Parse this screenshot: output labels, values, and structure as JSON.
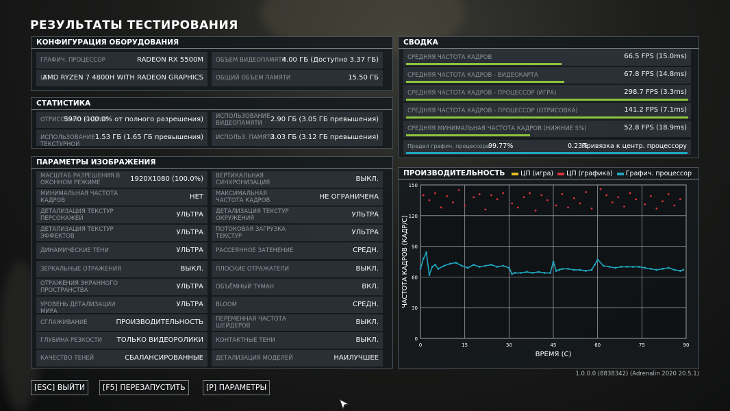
{
  "page_title": "РЕЗУЛЬТАТЫ ТЕСТИРОВАНИЯ",
  "hardware": {
    "title": "КОНФИГУРАЦИЯ ОБОРУДОВАНИЯ",
    "rows": [
      [
        {
          "label": "ГРАФИЧ. ПРОЦЕССОР",
          "value": "RADEON RX 5500M"
        },
        {
          "label": "ОБЪЕМ ВИДЕОПАМЯТИ",
          "value": "4.00 ГБ (Доступно 3.37 ГБ)"
        }
      ],
      [
        {
          "label": "ЦП",
          "value": "AMD RYZEN 7 4800H WITH RADEON GRAPHICS"
        },
        {
          "label": "ОБЩИЙ ОБЪЕМ ПАМЯТИ",
          "value": "15.50 ГБ"
        }
      ]
    ]
  },
  "stats": {
    "title": "СТАТИСТИКА",
    "rows": [
      [
        {
          "label": "ОТРИСОВАНО КАДРОВ",
          "value": "5970 (100.0% от полного разрешения)"
        },
        {
          "label": "ИСПОЛЬЗОВАНИЕ ВИДЕОПАМЯТИ",
          "value": "2.90 ГБ (3.05 ГБ превышения)"
        }
      ],
      [
        {
          "label": "ИСПОЛЬЗОВАНИЕ ТЕКСТУРНОЙ",
          "value": "1.53 ГБ (1.65 ГБ превышения)"
        },
        {
          "label": "ИСПОЛЬЗ. ПАМЯТИ",
          "value": "3.03 ГБ (3.12 ГБ превышения)"
        }
      ]
    ]
  },
  "image_settings": {
    "title": "ПАРАМЕТРЫ ИЗОБРАЖЕНИЯ",
    "rows": [
      [
        {
          "label": "МАСШТАБ РАЗРЕШЕНИЯ В ОКОННОМ РЕЖИМЕ",
          "value": "1920X1080 (100.0%)"
        },
        {
          "label": "ВЕРТИКАЛЬНАЯ СИНХРОНИЗАЦИЯ",
          "value": "ВЫКЛ."
        }
      ],
      [
        {
          "label": "МИНИМАЛЬНАЯ ЧАСТОТА КАДРОВ",
          "value": "НЕТ"
        },
        {
          "label": "МАКСИМАЛЬНАЯ ЧАСТОТА КАДРОВ",
          "value": "НЕ ОГРАНИЧЕНА"
        }
      ],
      [
        {
          "label": "ДЕТАЛИЗАЦИЯ ТЕКСТУР ПЕРСОНАЖЕЙ",
          "value": "УЛЬТРА"
        },
        {
          "label": "ДЕТАЛИЗАЦИЯ ТЕКСТУР ОКРУЖЕНИЯ",
          "value": "УЛЬТРА"
        }
      ],
      [
        {
          "label": "ДЕТАЛИЗАЦИЯ ТЕКСТУР ЭФФЕКТОВ",
          "value": "УЛЬТРА"
        },
        {
          "label": "ПОТОКОВАЯ ЗАГРУЗКА ТЕКСТУР",
          "value": "УЛЬТРА"
        }
      ],
      [
        {
          "label": "ДИНАМИЧЕСКИЕ ТЕНИ",
          "value": "УЛЬТРА"
        },
        {
          "label": "РАССЕЯННОЕ ЗАТЕНЕНИЕ",
          "value": "СРЕДН."
        }
      ],
      [
        {
          "label": "ЗЕРКАЛЬНЫЕ ОТРАЖЕНИЯ",
          "value": "ВЫКЛ."
        },
        {
          "label": "ПЛОСКИЕ ОТРАЖАТЕЛИ",
          "value": "ВЫКЛ."
        }
      ],
      [
        {
          "label": "ОТРАЖЕНИЯ ЭКРАННОГО ПРОСТРАНСТВА",
          "value": "УЛЬТРА"
        },
        {
          "label": "ОБЪЁМНЫЙ ТУМАН",
          "value": "ВКЛ."
        }
      ],
      [
        {
          "label": "УРОВЕНЬ ДЕТАЛИЗАЦИИ МИРА",
          "value": "УЛЬТРА"
        },
        {
          "label": "BLOOM",
          "value": "СРЕДН."
        }
      ],
      [
        {
          "label": "СГЛАЖИВАНИЕ",
          "value": "ПРОИЗВОДИТЕЛЬНОСТЬ"
        },
        {
          "label": "ПЕРЕМЕННАЯ ЧАСТОТА ШЕЙДЕРОВ",
          "value": "ВЫКЛ."
        }
      ],
      [
        {
          "label": "ГЛУБИНА РЕЗКОСТИ",
          "value": "ТОЛЬКО ВИДЕОРОЛИКИ"
        },
        {
          "label": "КОНТАКТНЫЕ ТЕНИ",
          "value": "ВЫКЛ."
        }
      ],
      [
        {
          "label": "КАЧЕСТВО ТЕНЕЙ",
          "value": "СБАЛАНСИРОВАННЫЕ"
        },
        {
          "label": "ДЕТАЛИЗАЦИЯ МОДЕЛЕЙ",
          "value": "НАИЛУЧШЕЕ"
        }
      ]
    ]
  },
  "summary": {
    "title": "СВОДКА",
    "bar_color": "#8cc43c",
    "rows": [
      {
        "label": "СРЕДНЯЯ ЧАСТОТА КАДРОВ",
        "value": "66.5 FPS (15.0ms)",
        "bar_fraction": 0.55
      },
      {
        "label": "СРЕДНЯЯ ЧАСТОТА КАДРОВ - ВИДЕОКАРТА",
        "value": "67.8 FPS (14.8ms)",
        "bar_fraction": 0.56
      },
      {
        "label": "СРЕДНЯЯ ЧАСТОТА КАДРОВ - ПРОЦЕССОР (ИГРА)",
        "value": "298.7 FPS (3.3ms)",
        "bar_fraction": 1.0
      },
      {
        "label": "СРЕДНЯЯ ЧАСТОТА КАДРОВ - ПРОЦЕССОР (ОТРИСОВКА)",
        "value": "141.2 FPS (7.1ms)",
        "bar_fraction": 1.0
      },
      {
        "label": "СРЕДНЯЯ МИНИМАЛЬНАЯ ЧАСТОТА КАДРОВ (НИЖНИЕ 5%)",
        "value": "52.8 FPS (18.9ms)",
        "bar_fraction": 0.44
      }
    ],
    "limit": {
      "gpu_label": "Предел графич. процессора",
      "gpu_value": "99.77%",
      "cpu_value": "0.23%",
      "cpu_label": "Привязка к центр. процессору",
      "gpu_fraction": 0.9977,
      "bar_color": "#1fa6c0"
    }
  },
  "performance": {
    "title": "ПРОИЗВОДИТЕЛЬНОСТЬ",
    "legend": [
      {
        "name": "ЦП (игра)",
        "color": "#e8c020"
      },
      {
        "name": "ЦП (графика)",
        "color": "#d8333c"
      },
      {
        "name": "Графич. процессор",
        "color": "#1fa6c0"
      }
    ]
  },
  "chart_data": {
    "type": "scatter",
    "xlabel": "ВРЕМЯ (С)",
    "ylabel": "ЧАСТОТА КАДРОВ (КАДР/С)",
    "xlim": [
      0,
      90
    ],
    "ylim": [
      0,
      150
    ],
    "x_ticks": [
      "0",
      "15",
      "30",
      "45",
      "60",
      "75",
      "90"
    ],
    "y_ticks": [
      "0",
      "30",
      "60",
      "90",
      "120",
      "150"
    ],
    "grid": true,
    "legend_position": "top",
    "series": [
      {
        "name": "ЦП (графика)",
        "color": "#d8333c",
        "x": [
          1,
          3,
          5,
          7,
          9,
          11,
          13,
          15,
          18,
          20,
          22,
          24,
          26,
          28,
          31,
          33,
          35,
          37,
          39,
          41,
          43,
          46,
          48,
          50,
          52,
          54,
          56,
          58,
          61,
          63,
          65,
          67,
          69,
          71,
          73,
          76,
          78,
          80,
          82,
          84,
          86,
          88
        ],
        "y": [
          140,
          135,
          142,
          128,
          139,
          133,
          145,
          130,
          138,
          141,
          126,
          140,
          136,
          142,
          132,
          128,
          138,
          142,
          125,
          140,
          135,
          130,
          141,
          128,
          137,
          132,
          143,
          127,
          146,
          140,
          133,
          138,
          129,
          142,
          136,
          131,
          139,
          127,
          134,
          141,
          130,
          136
        ]
      },
      {
        "name": "Графич. процессор",
        "color": "#1fa6c0",
        "x": [
          0,
          1,
          2,
          3,
          4,
          5,
          6,
          8,
          10,
          12,
          14,
          16,
          18,
          20,
          22,
          24,
          26,
          28,
          30,
          31,
          32,
          34,
          36,
          38,
          40,
          42,
          44,
          45,
          46,
          47,
          48,
          50,
          52,
          54,
          56,
          58,
          59,
          60,
          62,
          64,
          66,
          68,
          70,
          72,
          74,
          76,
          78,
          80,
          82,
          84,
          86,
          88,
          89
        ],
        "y": [
          68,
          78,
          84,
          62,
          70,
          72,
          68,
          71,
          73,
          74,
          71,
          69,
          72,
          70,
          71,
          72,
          70,
          71,
          69,
          63,
          64,
          64,
          65,
          64,
          65,
          64,
          64,
          75,
          66,
          67,
          68,
          68,
          67,
          67,
          66,
          67,
          72,
          77,
          71,
          70,
          69,
          70,
          70,
          70,
          70,
          69,
          68,
          67,
          68,
          69,
          67,
          66,
          67
        ]
      }
    ]
  },
  "buttons": {
    "exit": "[ESC] ВЫЙТИ",
    "restart": "[F5] ПЕРЕЗАПУСТИТЬ",
    "params": "[P] ПАРАМЕТРЫ"
  },
  "version": "1.0.0.0 (8838342) (Adrenalin 2020 20.5.1)"
}
